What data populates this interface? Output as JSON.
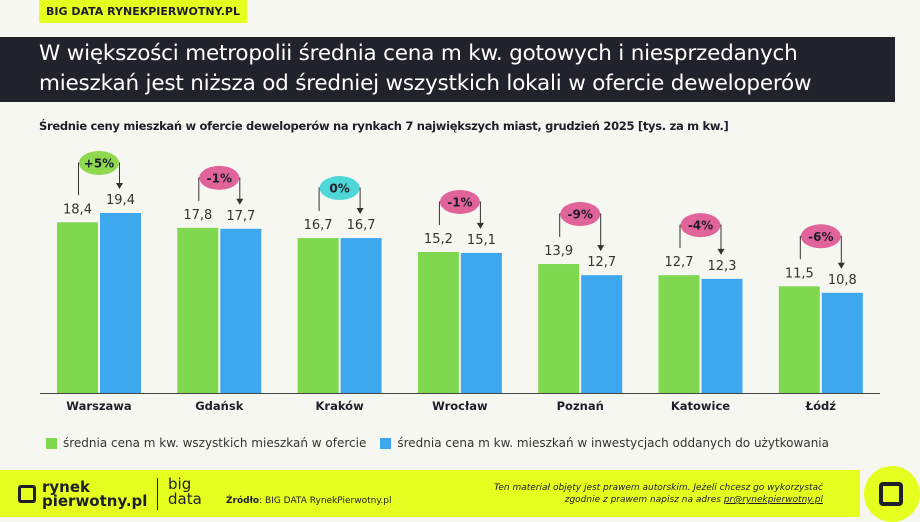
{
  "header": {
    "tag": "BIG DATA RYNEKPIERWOTNY.PL",
    "title_line1": "W większości metropolii średnia cena m kw. gotowych i niesprzedanych",
    "title_line2": "mieszkań jest niższa od średniej wszystkich lokali w ofercie deweloperów"
  },
  "chart_data": {
    "type": "bar",
    "title": "Średnie ceny mieszkań w ofercie deweloperów na rynkach 7 największych miast, grudzień 2025 [tys. za m kw.]",
    "categories": [
      "Warszawa",
      "Gdańsk",
      "Kraków",
      "Wrocław",
      "Poznań",
      "Katowice",
      "Łódź"
    ],
    "series": [
      {
        "name": "średnia cena m kw. wszystkich mieszkań w ofercie",
        "color": "#7fd84f",
        "values": [
          18.4,
          17.8,
          16.7,
          15.2,
          13.9,
          12.7,
          11.5
        ],
        "labels": [
          "18,4",
          "17,8",
          "16,7",
          "15,2",
          "13,9",
          "12,7",
          "11,5"
        ]
      },
      {
        "name": "średnia cena m kw. mieszkań w inwestycjach oddanych do użytkowania",
        "color": "#3ea8ef",
        "values": [
          19.4,
          17.7,
          16.7,
          15.1,
          12.7,
          12.3,
          10.8
        ],
        "labels": [
          "19,4",
          "17,7",
          "16,7",
          "15,1",
          "12,7",
          "12,3",
          "10,8"
        ]
      }
    ],
    "differences": [
      {
        "label": "+5%",
        "color": "#8fd94f"
      },
      {
        "label": "-1%",
        "color": "#e0639a"
      },
      {
        "label": "0%",
        "color": "#4fd6d6"
      },
      {
        "label": "-1%",
        "color": "#e0639a"
      },
      {
        "label": "-9%",
        "color": "#e0639a"
      },
      {
        "label": "-4%",
        "color": "#e0639a"
      },
      {
        "label": "-6%",
        "color": "#e0639a"
      }
    ],
    "ylim": [
      0,
      20
    ],
    "grid": false,
    "legend": "bottom"
  },
  "footer": {
    "logo_line1": "rynek",
    "logo_line2": "pierwotny.pl",
    "bigdata_line1": "big",
    "bigdata_line2": "data",
    "source_label": "Źródło",
    "source_value": ": BIG DATA RynekPierwotny.pl",
    "copyright_line1": "Ten materiał objęty jest prawem autorskim. Jeżeli chcesz go wykorzystać",
    "copyright_line2": "zgodnie z prawem napisz na adres ",
    "email": "pr@rynekpierwotny.pl"
  }
}
